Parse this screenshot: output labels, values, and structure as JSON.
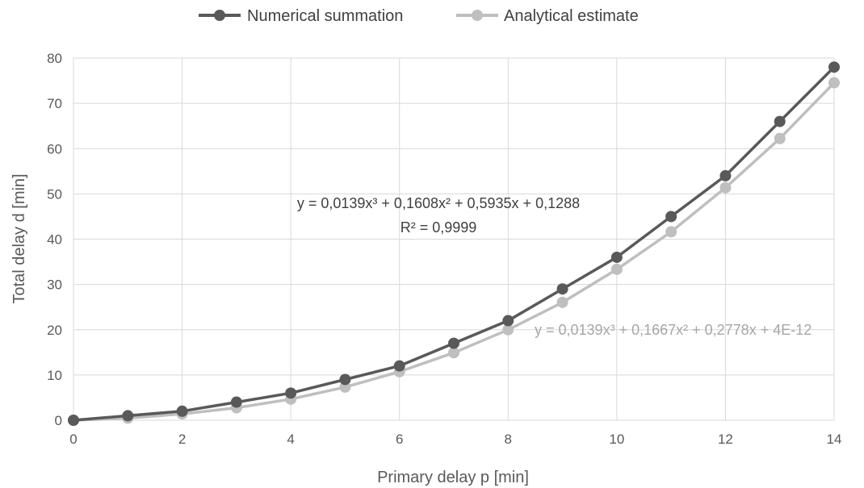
{
  "chart_data": {
    "type": "line",
    "xlabel": "Primary delay p [min]",
    "ylabel": "Total delay d [min]",
    "xlim": [
      0,
      14
    ],
    "ylim": [
      0,
      80
    ],
    "x_ticks": [
      0,
      2,
      4,
      6,
      8,
      10,
      12,
      14
    ],
    "y_ticks": [
      0,
      10,
      20,
      30,
      40,
      50,
      60,
      70,
      80
    ],
    "grid": true,
    "legend_position": "top",
    "x": [
      0,
      1,
      2,
      3,
      4,
      5,
      6,
      7,
      8,
      9,
      10,
      11,
      12,
      13,
      14
    ],
    "series": [
      {
        "name": "Numerical summation",
        "color": "#595959",
        "values": [
          0,
          1,
          2,
          4,
          6,
          9,
          12,
          17,
          22,
          29,
          36,
          45,
          54,
          66,
          78
        ]
      },
      {
        "name": "Analytical estimate",
        "color": "#bfbfbf",
        "values": [
          0,
          0.46,
          1.4,
          2.75,
          4.67,
          7.32,
          10.72,
          14.92,
          20.0,
          26.04,
          33.34,
          41.63,
          51.36,
          62.22,
          74.55
        ]
      }
    ],
    "annotations": [
      {
        "text": "y = 0,0139x³ + 0,1608x² + 0,5935x + 0,1288",
        "color": "#404040"
      },
      {
        "text": "R² = 0,9999",
        "color": "#404040"
      },
      {
        "text": "y = 0,0139x³ + 0,1667x² + 0,2778x + 4E-12",
        "color": "#a6a6a6"
      }
    ]
  }
}
